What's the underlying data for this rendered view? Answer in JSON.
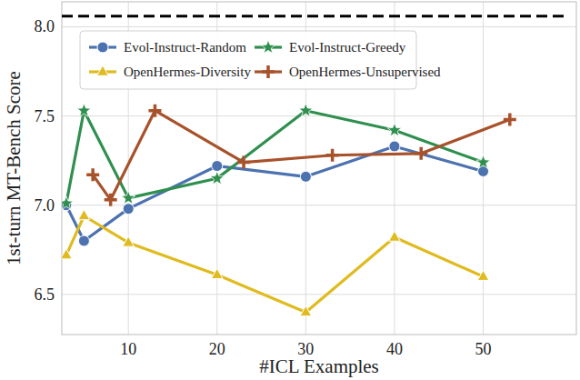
{
  "chart_data": {
    "type": "line",
    "x_label": "#ICL Examples",
    "y_label": "1st-turn MT-Bench Score",
    "xlim": [
      2.5,
      60.5
    ],
    "ylim": [
      6.275,
      8.14
    ],
    "xticks": [
      10,
      20,
      30,
      40,
      50
    ],
    "yticks": [
      6.5,
      {
        "value": 7,
        "label": "7.0"
      },
      7.5,
      {
        "value": 8,
        "label": "8.0"
      }
    ],
    "grid": true,
    "legend": "upper-left",
    "hline": {
      "value": 8.06,
      "color": "#000000",
      "line_style": "dashed"
    },
    "series": [
      {
        "name": "Evol-Instruct-Random",
        "color": "#4c72b0",
        "marker": "circle",
        "x": [
          3,
          5,
          10,
          20,
          30,
          40,
          50
        ],
        "values": [
          7.0,
          6.8,
          6.98,
          7.22,
          7.16,
          7.33,
          7.19
        ]
      },
      {
        "name": "Evol-Instruct-Greedy",
        "color": "#2f8f4e",
        "marker": "star",
        "x": [
          3,
          5,
          10,
          20,
          30,
          40,
          50
        ],
        "values": [
          7.01,
          7.53,
          7.04,
          7.15,
          7.53,
          7.42,
          7.24
        ]
      },
      {
        "name": "OpenHermes-Diversity",
        "color": "#e0bb1f",
        "marker": "triangle",
        "x": [
          3,
          5,
          10,
          20,
          30,
          40,
          50
        ],
        "values": [
          6.72,
          6.94,
          6.79,
          6.61,
          6.4,
          6.82,
          6.6
        ]
      },
      {
        "name": "OpenHermes-Unsupervised",
        "color": "#a8522c",
        "marker": "plus",
        "x": [
          6,
          8,
          13,
          23,
          33,
          43,
          53
        ],
        "values": [
          7.17,
          7.03,
          7.53,
          7.24,
          7.28,
          7.29,
          7.48
        ]
      }
    ]
  }
}
